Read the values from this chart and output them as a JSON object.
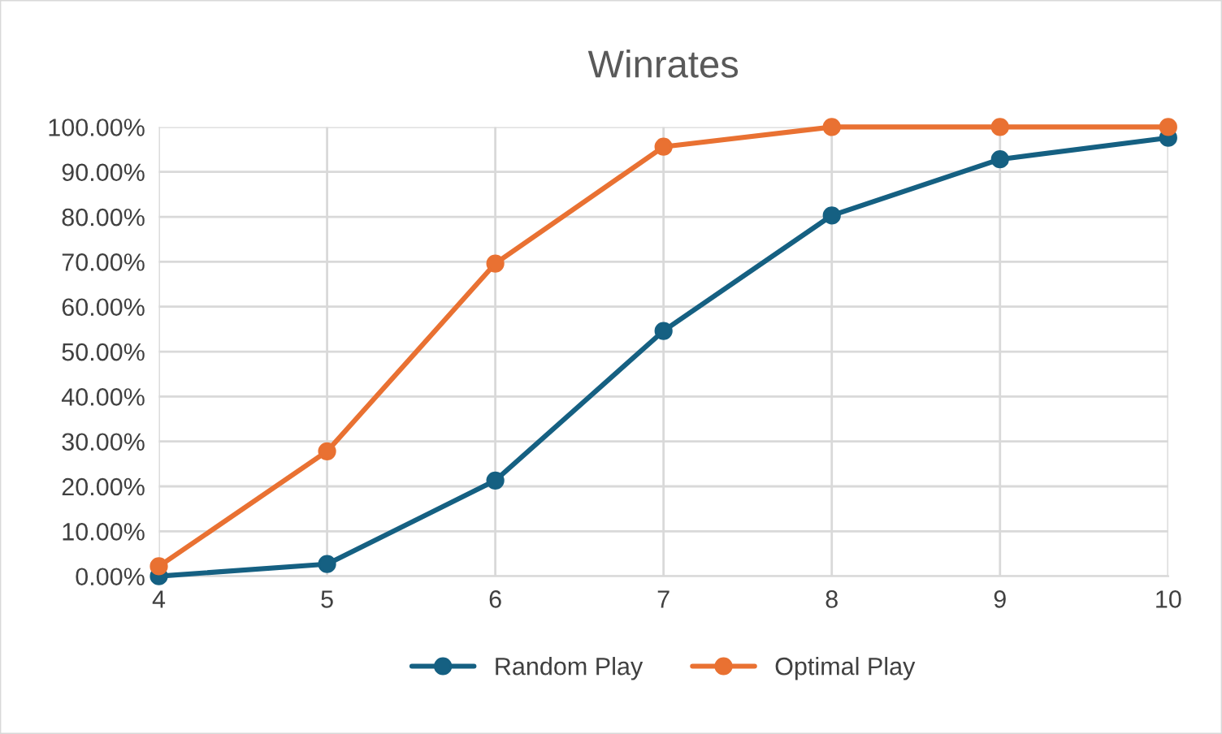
{
  "chart_data": {
    "type": "line",
    "title": "Winrates",
    "categories": [
      "4",
      "5",
      "6",
      "7",
      "8",
      "9",
      "10"
    ],
    "series": [
      {
        "name": "Random Play",
        "color": "#156082",
        "values": [
          0,
          2.7,
          21.3,
          54.6,
          80.3,
          92.8,
          97.6
        ]
      },
      {
        "name": "Optimal Play",
        "color": "#e97132",
        "values": [
          2.2,
          27.8,
          69.6,
          95.6,
          100,
          100,
          100
        ]
      }
    ],
    "ylim": [
      0,
      100
    ],
    "yticks": [
      {
        "value": 0,
        "label": "0.00%"
      },
      {
        "value": 10,
        "label": "10.00%"
      },
      {
        "value": 20,
        "label": "20.00%"
      },
      {
        "value": 30,
        "label": "30.00%"
      },
      {
        "value": 40,
        "label": "40.00%"
      },
      {
        "value": 50,
        "label": "50.00%"
      },
      {
        "value": 60,
        "label": "60.00%"
      },
      {
        "value": 70,
        "label": "70.00%"
      },
      {
        "value": 80,
        "label": "80.00%"
      },
      {
        "value": 90,
        "label": "90.00%"
      },
      {
        "value": 100,
        "label": "100.00%"
      }
    ],
    "grid": true,
    "legend": "bottom",
    "marker": "circle",
    "line_style": "solid"
  }
}
